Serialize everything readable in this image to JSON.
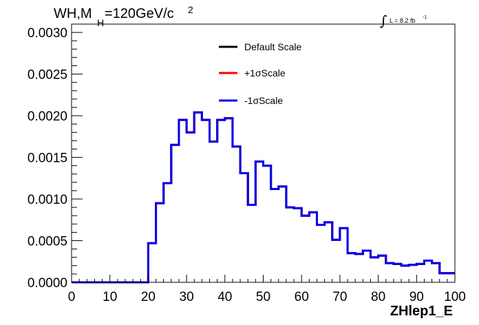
{
  "chart_data": {
    "type": "line",
    "title": {
      "prefix": "WH,M",
      "sub": "H",
      "suffix": "=120GeV/c",
      "sup": "2"
    },
    "luminosity": {
      "text": "L = 8.2 fb",
      "sup": "-1"
    },
    "xlabel": "ZHlep1_E",
    "ylabel": "",
    "xlim": [
      0,
      100
    ],
    "ylim": [
      0,
      0.0031
    ],
    "xticks": [
      0,
      10,
      20,
      30,
      40,
      50,
      60,
      70,
      80,
      90,
      100
    ],
    "xtick_labels": [
      "0",
      "10",
      "20",
      "30",
      "40",
      "50",
      "60",
      "70",
      "80",
      "90",
      "100"
    ],
    "yticks": [
      0,
      0.0005,
      0.001,
      0.0015,
      0.002,
      0.0025,
      0.003
    ],
    "ytick_labels": [
      "0.0000",
      "0.0005",
      "0.0010",
      "0.0015",
      "0.0020",
      "0.0025",
      "0.0030"
    ],
    "grid": false,
    "legend_position": "top-center",
    "bin_edges": [
      0,
      2,
      4,
      6,
      8,
      10,
      12,
      14,
      16,
      18,
      20,
      22,
      24,
      26,
      28,
      30,
      32,
      34,
      36,
      38,
      40,
      42,
      44,
      46,
      48,
      50,
      52,
      54,
      56,
      58,
      60,
      62,
      64,
      66,
      68,
      70,
      72,
      74,
      76,
      78,
      80,
      82,
      84,
      86,
      88,
      90,
      92,
      94,
      96,
      98,
      100
    ],
    "series": [
      {
        "name": "Default Scale",
        "color": "#000000",
        "values": [
          0,
          0,
          0,
          0,
          0,
          0,
          0,
          0,
          0,
          0,
          0.00047,
          0.00095,
          0.00119,
          0.00165,
          0.00195,
          0.0018,
          0.00204,
          0.00195,
          0.00169,
          0.00195,
          0.00197,
          0.00163,
          0.00131,
          0.00093,
          0.00145,
          0.0014,
          0.00112,
          0.00115,
          0.0009,
          0.00089,
          0.0008,
          0.00084,
          0.00069,
          0.00072,
          0.00051,
          0.00065,
          0.00035,
          0.00034,
          0.00038,
          0.0003,
          0.00032,
          0.00023,
          0.00022,
          0.0002,
          0.00021,
          0.00022,
          0.00026,
          0.00023,
          0.00011,
          0.00011
        ]
      },
      {
        "name": "+1σScale",
        "color": "#ff0000",
        "values": [
          0,
          0,
          0,
          0,
          0,
          0,
          0,
          0,
          0,
          0,
          0.00047,
          0.00095,
          0.00119,
          0.00165,
          0.00195,
          0.0018,
          0.00204,
          0.00195,
          0.00169,
          0.00195,
          0.00197,
          0.00163,
          0.00131,
          0.00093,
          0.00145,
          0.0014,
          0.00112,
          0.00115,
          0.0009,
          0.00089,
          0.0008,
          0.00084,
          0.00069,
          0.00072,
          0.00051,
          0.00065,
          0.00035,
          0.00034,
          0.00038,
          0.0003,
          0.00032,
          0.00023,
          0.00022,
          0.0002,
          0.00021,
          0.00022,
          0.00026,
          0.00023,
          0.00011,
          0.00011
        ]
      },
      {
        "name": "-1σScale",
        "color": "#0000ee",
        "values": [
          0,
          0,
          0,
          0,
          0,
          0,
          0,
          0,
          0,
          0,
          0.00047,
          0.00095,
          0.00119,
          0.00165,
          0.00195,
          0.0018,
          0.00204,
          0.00195,
          0.00169,
          0.00195,
          0.00197,
          0.00163,
          0.00131,
          0.00093,
          0.00145,
          0.0014,
          0.00112,
          0.00115,
          0.0009,
          0.00089,
          0.0008,
          0.00084,
          0.00069,
          0.00072,
          0.00051,
          0.00065,
          0.00035,
          0.00034,
          0.00038,
          0.0003,
          0.00032,
          0.00023,
          0.00022,
          0.0002,
          0.00021,
          0.00022,
          0.00026,
          0.00023,
          0.00011,
          0.00011
        ]
      }
    ]
  }
}
